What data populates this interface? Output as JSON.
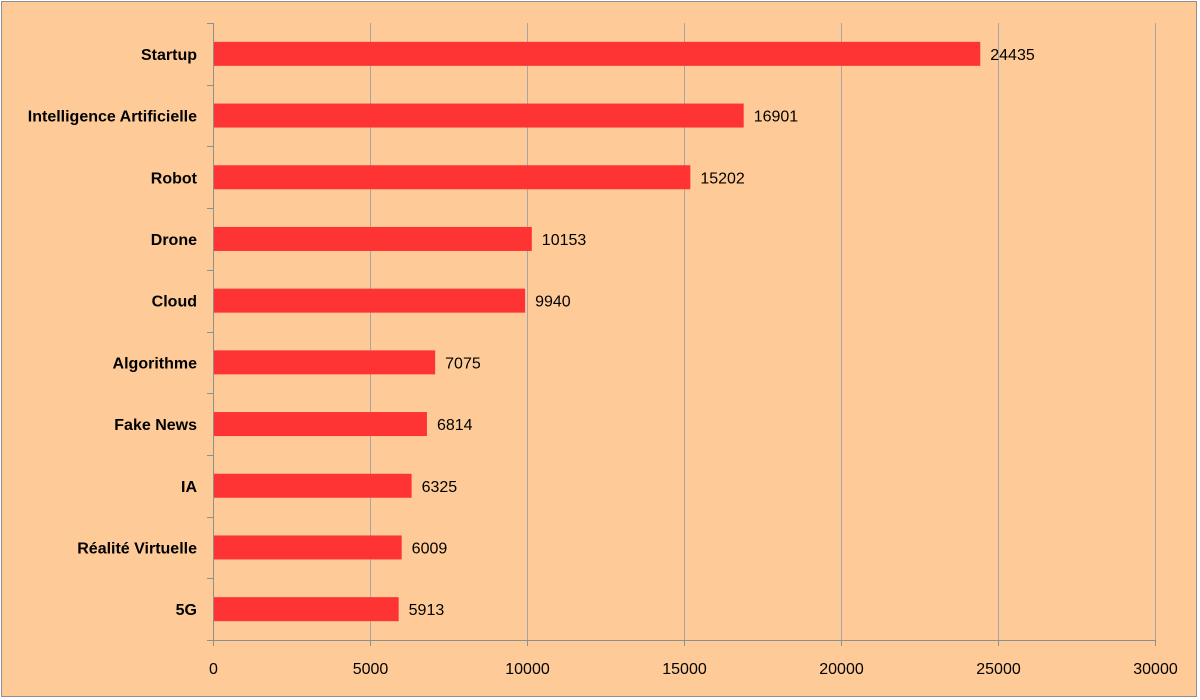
{
  "chart_data": {
    "type": "bar",
    "orientation": "horizontal",
    "categories": [
      "Startup",
      "Intelligence Artificielle",
      "Robot",
      "Drone",
      "Cloud",
      "Algorithme",
      "Fake News",
      "IA",
      "Réalité Virtuelle",
      "5G"
    ],
    "values": [
      24435,
      16901,
      15202,
      10153,
      9940,
      7075,
      6814,
      6325,
      6009,
      5913
    ],
    "data_labels": [
      "24435",
      "16901",
      "15202",
      "10153",
      "9940",
      "7075",
      "6814",
      "6325",
      "6009",
      "5913"
    ],
    "xlim": [
      0,
      30000
    ],
    "x_ticks": [
      0,
      5000,
      10000,
      15000,
      20000,
      25000,
      30000
    ],
    "x_tick_labels": [
      "0",
      "5000",
      "10000",
      "15000",
      "20000",
      "25000",
      "30000"
    ],
    "title": "",
    "xlabel": "",
    "ylabel": "",
    "grid": "vertical",
    "legend": "none"
  },
  "colors": {
    "background": "#fecb98",
    "bar": "#fe3333",
    "gridline": "#a6a6a6",
    "axis": "#8f8f8f",
    "text": "#000000"
  }
}
